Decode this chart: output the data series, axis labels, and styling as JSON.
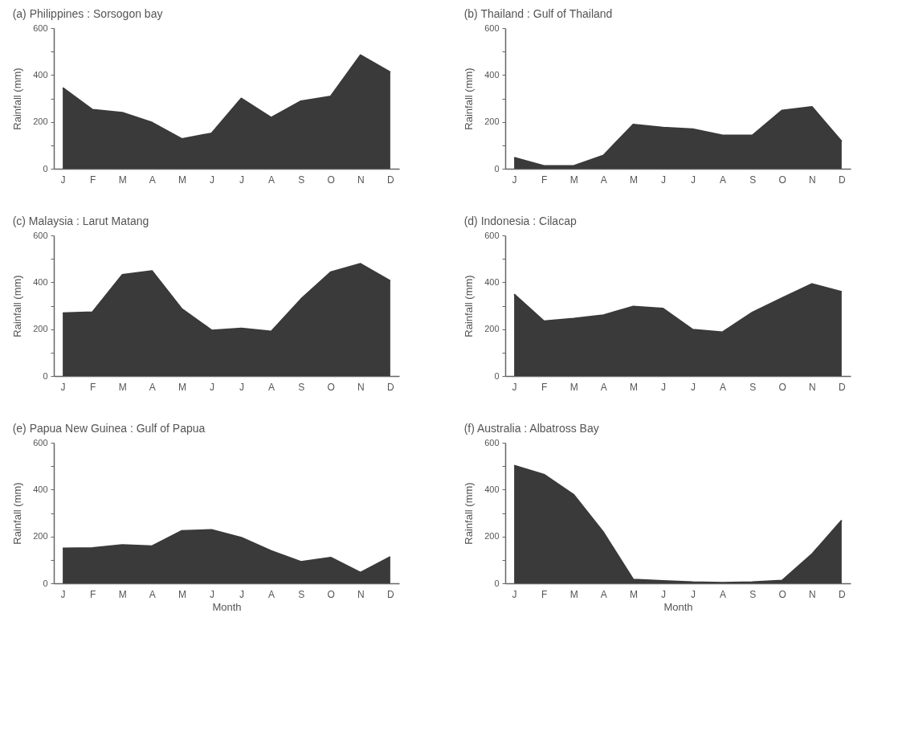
{
  "chart_data": [
    {
      "type": "area",
      "title": "(a)    Philippines : Sorsogon bay",
      "ylabel": "Rainfall  (mm)",
      "categories": [
        "J",
        "F",
        "M",
        "A",
        "M",
        "J",
        "J",
        "A",
        "S",
        "O",
        "N",
        "D"
      ],
      "values": [
        345,
        252,
        239,
        197,
        127,
        151,
        300,
        218,
        288,
        309,
        485,
        412
      ],
      "color": "#3a3a3a",
      "ylim": [
        0,
        600
      ],
      "yticks": [
        0,
        {
          "value": 100,
          "label": null
        },
        200,
        {
          "value": 300,
          "label": null
        },
        400,
        {
          "value": 500,
          "label": null
        },
        600
      ]
    },
    {
      "type": "area",
      "title": "(b)    Thailand : Gulf of Thailand",
      "ylabel": "Rainfall  (mm)",
      "categories": [
        "J",
        "F",
        "M",
        "A",
        "M",
        "J",
        "J",
        "A",
        "S",
        "O",
        "N",
        "D"
      ],
      "values": [
        47,
        12,
        12,
        57,
        189,
        176,
        169,
        142,
        142,
        249,
        264,
        116
      ],
      "color": "#3a3a3a",
      "ylim": [
        0,
        600
      ],
      "yticks": [
        0,
        {
          "value": 100,
          "label": null
        },
        200,
        {
          "value": 300,
          "label": null
        },
        400,
        {
          "value": 500,
          "label": null
        },
        600
      ]
    },
    {
      "type": "area",
      "title": "(c)    Malaysia : Larut Matang",
      "ylabel": "Rainfall  (mm)",
      "categories": [
        "J",
        "F",
        "M",
        "A",
        "M",
        "J",
        "J",
        "A",
        "S",
        "O",
        "N",
        "D"
      ],
      "values": [
        268,
        273,
        432,
        448,
        286,
        195,
        203,
        190,
        328,
        443,
        479,
        406
      ],
      "color": "#3a3a3a",
      "ylim": [
        0,
        600
      ],
      "yticks": [
        0,
        {
          "value": 100,
          "label": null
        },
        200,
        {
          "value": 300,
          "label": null
        },
        400,
        {
          "value": 500,
          "label": null
        },
        600
      ]
    },
    {
      "type": "area",
      "title": "(d)    Indonesia : Cilacap",
      "ylabel": "Rainfall  (mm)",
      "categories": [
        "J",
        "F",
        "M",
        "A",
        "M",
        "J",
        "J",
        "A",
        "S",
        "O",
        "N",
        "D"
      ],
      "values": [
        349,
        234,
        245,
        260,
        297,
        288,
        198,
        187,
        271,
        333,
        393,
        359
      ],
      "color": "#3a3a3a",
      "ylim": [
        0,
        600
      ],
      "yticks": [
        0,
        {
          "value": 100,
          "label": null
        },
        200,
        {
          "value": 300,
          "label": null
        },
        400,
        {
          "value": 500,
          "label": null
        },
        600
      ]
    },
    {
      "type": "area",
      "title": "(e) Papua New Guinea : Gulf of Papua",
      "xlabel": "Month",
      "ylabel": "Rainfall  (mm)",
      "categories": [
        "J",
        "F",
        "M",
        "A",
        "M",
        "J",
        "J",
        "A",
        "S",
        "O",
        "N",
        "D"
      ],
      "values": [
        149,
        151,
        164,
        159,
        224,
        228,
        195,
        138,
        92,
        110,
        46,
        113
      ],
      "color": "#3a3a3a",
      "ylim": [
        0,
        600
      ],
      "yticks": [
        0,
        {
          "value": 100,
          "label": null
        },
        200,
        {
          "value": 300,
          "label": null
        },
        400,
        {
          "value": 500,
          "label": null
        },
        600
      ]
    },
    {
      "type": "area",
      "title": "(f)    Australia : Albatross Bay",
      "xlabel": "Month",
      "ylabel": "Rainfall  (mm)",
      "categories": [
        "J",
        "F",
        "M",
        "A",
        "M",
        "J",
        "J",
        "A",
        "S",
        "O",
        "N",
        "D"
      ],
      "values": [
        502,
        464,
        378,
        217,
        16,
        10,
        5,
        3,
        5,
        12,
        124,
        269
      ],
      "color": "#3a3a3a",
      "ylim": [
        0,
        600
      ],
      "yticks": [
        0,
        {
          "value": 100,
          "label": null
        },
        200,
        {
          "value": 300,
          "label": null
        },
        400,
        {
          "value": 500,
          "label": null
        },
        600
      ]
    }
  ]
}
